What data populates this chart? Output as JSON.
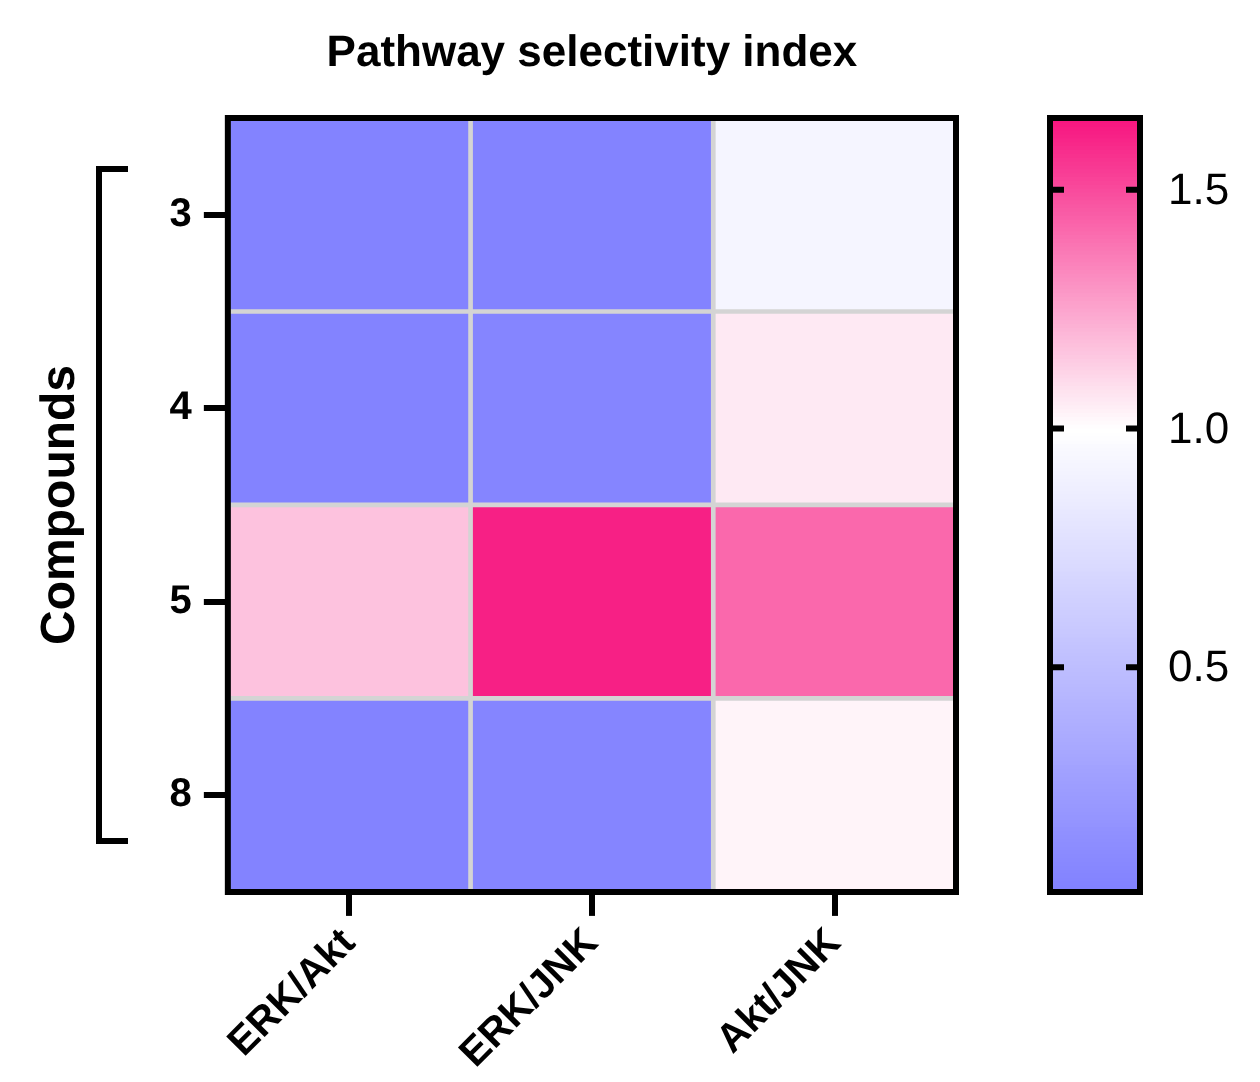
{
  "chart_data": {
    "type": "heatmap",
    "title": "Pathway selectivity index",
    "ylabel": "Compounds",
    "categories": [
      "ERK/Akt",
      "ERK/JNK",
      "Akt/JNK"
    ],
    "y_categories": [
      "3",
      "4",
      "5",
      "8"
    ],
    "cells": [
      [
        0.05,
        0.05,
        0.92
      ],
      [
        0.05,
        0.07,
        1.06
      ],
      [
        1.17,
        1.62,
        1.42
      ],
      [
        0.05,
        0.07,
        1.03
      ]
    ],
    "clim": [
      0.03,
      1.65
    ],
    "cticks": [
      {
        "value": 0.5,
        "label": "0.5"
      },
      {
        "value": 1.0,
        "label": "1.0"
      },
      {
        "value": 1.5,
        "label": "1.5"
      }
    ]
  }
}
